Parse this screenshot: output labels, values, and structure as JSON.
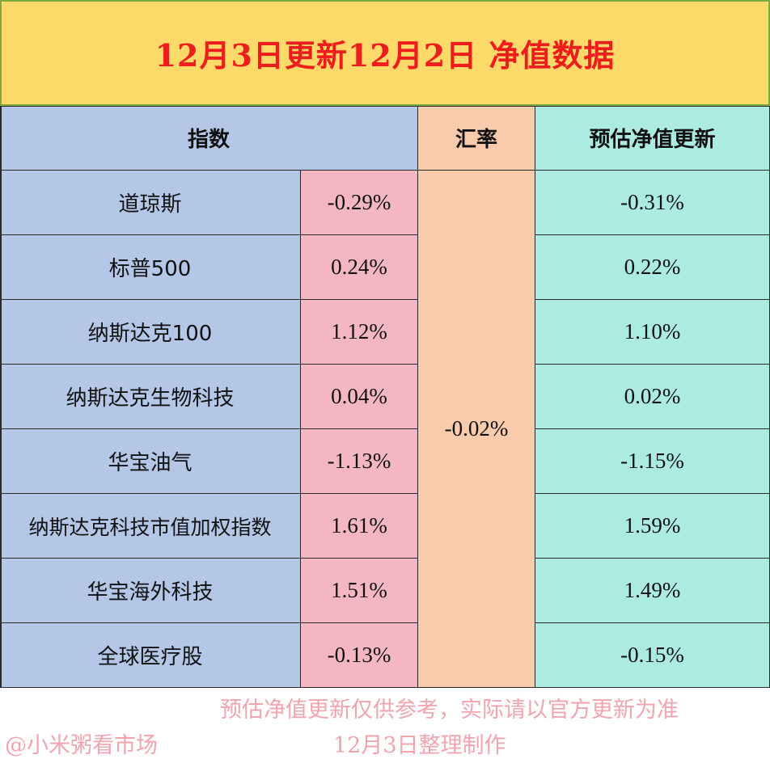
{
  "title": "12月3日更新12月2日 净值数据",
  "headers": {
    "index": "指数",
    "fx": "汇率",
    "estimate": "预估净值更新"
  },
  "rows": [
    {
      "name": "道琼斯",
      "change": "-0.29%",
      "estimate": "-0.31%"
    },
    {
      "name": "标普500",
      "change": "0.24%",
      "estimate": "0.22%"
    },
    {
      "name": "纳斯达克100",
      "change": "1.12%",
      "estimate": "1.10%"
    },
    {
      "name": "纳斯达克生物科技",
      "change": "0.04%",
      "estimate": "0.02%"
    },
    {
      "name": "华宝油气",
      "change": "-1.13%",
      "estimate": "-1.15%"
    },
    {
      "name": "纳斯达克科技市值加权指数",
      "change": "1.61%",
      "estimate": "1.59%"
    },
    {
      "name": "华宝海外科技",
      "change": "1.51%",
      "estimate": "1.49%"
    },
    {
      "name": "全球医疗股",
      "change": "-0.13%",
      "estimate": "-0.15%"
    }
  ],
  "fx_rate": "-0.02%",
  "footer": {
    "disclaimer": "预估净值更新仅供参考，实际请以官方更新为准",
    "author": "@小米粥看市场",
    "date_note": "12月3日整理制作"
  },
  "colors": {
    "title_bg": "#FDD969",
    "title_text": "#EE1D1D",
    "index_bg": "#B4C7E7",
    "change_bg": "#F4B6C1",
    "fx_bg": "#F8CBAD",
    "estimate_bg": "#ABEBE2",
    "footer_text": "#F0A5AE"
  }
}
